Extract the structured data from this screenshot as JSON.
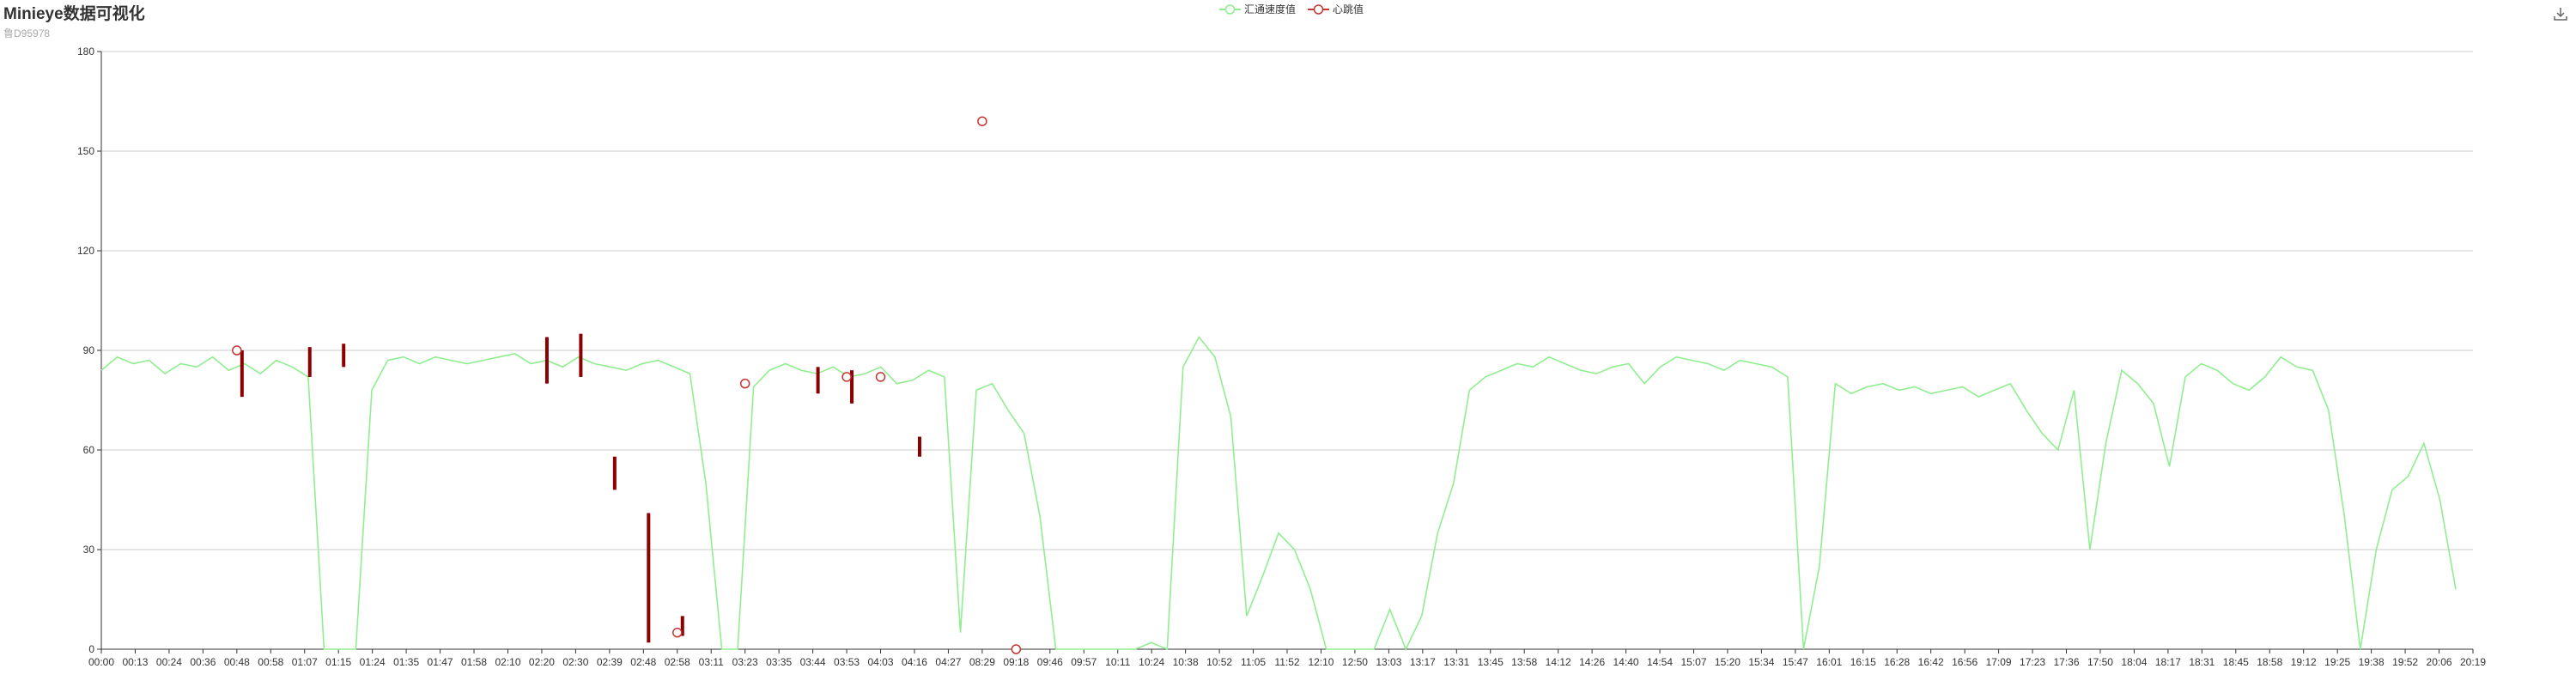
{
  "page": {
    "title": "Minieye数据可视化",
    "subtitle": "鲁D95978"
  },
  "toolbox": {
    "icon": "download-icon"
  },
  "colors": {
    "speed": "#90ee90",
    "heartbeat": "#c23531",
    "candle": "#8b0000",
    "grid": "#cccccc",
    "axis": "#333333"
  },
  "chart_data": {
    "type": "line",
    "title": "Minieye数据可视化",
    "subtitle": "鲁D95978",
    "legend": {
      "position": "top-center",
      "entries": [
        "汇通速度值",
        "心跳值"
      ]
    },
    "ylim": [
      0,
      180
    ],
    "yticks": [
      0,
      30,
      60,
      90,
      120,
      150,
      180
    ],
    "grid": true,
    "xticks": [
      "00:00",
      "00:13",
      "00:24",
      "00:36",
      "00:48",
      "00:58",
      "01:07",
      "01:15",
      "01:24",
      "01:35",
      "01:47",
      "01:58",
      "02:10",
      "02:20",
      "02:30",
      "02:39",
      "02:48",
      "02:58",
      "03:11",
      "03:23",
      "03:35",
      "03:44",
      "03:53",
      "04:03",
      "04:16",
      "04:27",
      "08:29",
      "09:18",
      "09:46",
      "09:57",
      "10:11",
      "10:24",
      "10:38",
      "10:52",
      "11:05",
      "11:52",
      "12:10",
      "12:50",
      "13:03",
      "13:17",
      "13:31",
      "13:45",
      "13:58",
      "14:12",
      "14:26",
      "14:40",
      "14:54",
      "15:07",
      "15:20",
      "15:34",
      "15:47",
      "16:01",
      "16:15",
      "16:28",
      "16:42",
      "16:56",
      "17:09",
      "17:23",
      "17:36",
      "17:50",
      "18:04",
      "18:17",
      "18:31",
      "18:45",
      "18:58",
      "19:12",
      "19:25",
      "19:38",
      "19:52",
      "20:06",
      "20:19"
    ],
    "series": [
      {
        "name": "汇通速度值",
        "type": "line",
        "values": [
          84,
          88,
          86,
          87,
          83,
          86,
          85,
          88,
          84,
          86,
          83,
          87,
          85,
          82,
          0,
          0,
          0,
          78,
          87,
          88,
          86,
          88,
          87,
          86,
          87,
          88,
          89,
          86,
          87,
          85,
          88,
          86,
          85,
          84,
          86,
          87,
          85,
          83,
          50,
          0,
          0,
          79,
          84,
          86,
          84,
          83,
          85,
          82,
          83,
          85,
          80,
          81,
          84,
          82,
          5,
          78,
          80,
          72,
          65,
          40,
          0,
          0,
          0,
          0,
          0,
          0,
          2,
          0,
          85,
          94,
          88,
          70,
          10,
          22,
          35,
          30,
          18,
          0,
          0,
          0,
          0,
          12,
          0,
          10,
          35,
          50,
          78,
          82,
          84,
          86,
          85,
          88,
          86,
          84,
          83,
          85,
          86,
          80,
          85,
          88,
          87,
          86,
          84,
          87,
          86,
          85,
          82,
          0,
          25,
          80,
          77,
          79,
          80,
          78,
          79,
          77,
          78,
          79,
          76,
          78,
          80,
          72,
          65,
          60,
          78,
          30,
          62,
          84,
          80,
          74,
          55,
          82,
          86,
          84,
          80,
          78,
          82,
          88,
          85,
          84,
          72,
          40,
          0,
          30,
          48,
          52,
          62,
          45,
          18
        ]
      },
      {
        "name": "心跳值",
        "type": "scatter",
        "points": [
          {
            "x": "00:48",
            "y": 90
          },
          {
            "x": "02:58",
            "y": 5
          },
          {
            "x": "03:23",
            "y": 80
          },
          {
            "x": "03:53",
            "y": 82
          },
          {
            "x": "04:03",
            "y": 82
          },
          {
            "x": "08:29",
            "y": 159
          },
          {
            "x": "09:18",
            "y": 0
          }
        ]
      },
      {
        "name": "",
        "type": "candlestick",
        "bars": [
          {
            "x": "00:48",
            "low": 76,
            "high": 90
          },
          {
            "x": "01:07",
            "low": 82,
            "high": 91
          },
          {
            "x": "01:15",
            "low": 85,
            "high": 92
          },
          {
            "x": "02:20",
            "low": 80,
            "high": 94
          },
          {
            "x": "02:30",
            "low": 82,
            "high": 95
          },
          {
            "x": "02:39",
            "low": 48,
            "high": 58
          },
          {
            "x": "02:48",
            "low": 2,
            "high": 41
          },
          {
            "x": "02:58",
            "low": 4,
            "high": 10
          },
          {
            "x": "03:44",
            "low": 77,
            "high": 85
          },
          {
            "x": "03:53",
            "low": 74,
            "high": 84
          },
          {
            "x": "04:16",
            "low": 58,
            "high": 64
          }
        ]
      }
    ]
  }
}
